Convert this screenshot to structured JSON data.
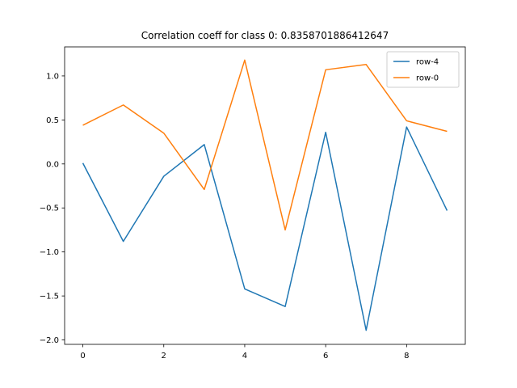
{
  "chart_data": {
    "type": "line",
    "title": "Correlation coeff for class 0: 0.8358701886412647",
    "xlabel": "",
    "ylabel": "",
    "x": [
      0,
      1,
      2,
      3,
      4,
      5,
      6,
      7,
      8,
      9
    ],
    "xlim": [
      -0.45,
      9.45
    ],
    "ylim": [
      -2.05,
      1.33
    ],
    "xticks": [
      0,
      2,
      4,
      6,
      8
    ],
    "xtick_labels": [
      "0",
      "2",
      "4",
      "6",
      "8"
    ],
    "yticks": [
      1.0,
      0.5,
      0.0,
      -0.5,
      -1.0,
      -1.5,
      -2.0
    ],
    "ytick_labels": [
      "1.0",
      "0.5",
      "0.0",
      "−0.5",
      "−1.0",
      "−1.5",
      "−2.0"
    ],
    "grid": false,
    "legend_position": "top-right",
    "series": [
      {
        "name": "row-4",
        "color": "#1f77b4",
        "values": [
          0.01,
          -0.88,
          -0.14,
          0.22,
          -1.42,
          -1.62,
          0.36,
          -1.89,
          0.42,
          -0.53
        ]
      },
      {
        "name": "row-0",
        "color": "#ff7f0e",
        "values": [
          0.44,
          0.67,
          0.35,
          -0.29,
          1.18,
          -0.75,
          1.07,
          1.13,
          0.49,
          0.37
        ]
      }
    ]
  }
}
